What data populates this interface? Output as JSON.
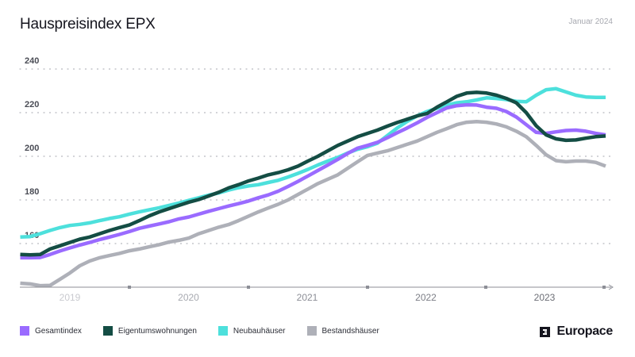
{
  "header": {
    "title": "Hauspreisindex EPX",
    "date": "Januar 2024"
  },
  "brand": {
    "name": "Europace",
    "icon": "europace-logo-icon"
  },
  "chart_data": {
    "type": "line",
    "title": "Hauspreisindex EPX",
    "subtitle": "Januar 2024",
    "xlabel": "",
    "ylabel": "",
    "ylim": [
      140,
      245
    ],
    "yticks": [
      160,
      180,
      200,
      220,
      240
    ],
    "ytick_labels": [
      "160",
      "180",
      "200",
      "220",
      "240"
    ],
    "xticks": [
      "2019",
      "2020",
      "2021",
      "2022",
      "2023"
    ],
    "x_range": [
      "2019-02",
      "2024-01"
    ],
    "grid": "horizontal dotted",
    "legend_position": "bottom-left",
    "x": [
      "2019-02",
      "2019-03",
      "2019-04",
      "2019-05",
      "2019-06",
      "2019-07",
      "2019-08",
      "2019-09",
      "2019-10",
      "2019-11",
      "2019-12",
      "2020-01",
      "2020-02",
      "2020-03",
      "2020-04",
      "2020-05",
      "2020-06",
      "2020-07",
      "2020-08",
      "2020-09",
      "2020-10",
      "2020-11",
      "2020-12",
      "2021-01",
      "2021-02",
      "2021-03",
      "2021-04",
      "2021-05",
      "2021-06",
      "2021-07",
      "2021-08",
      "2021-09",
      "2021-10",
      "2021-11",
      "2021-12",
      "2022-01",
      "2022-02",
      "2022-03",
      "2022-04",
      "2022-05",
      "2022-06",
      "2022-07",
      "2022-08",
      "2022-09",
      "2022-10",
      "2022-11",
      "2022-12",
      "2023-01",
      "2023-02",
      "2023-03",
      "2023-04",
      "2023-05",
      "2023-06",
      "2023-07",
      "2023-08",
      "2023-09",
      "2023-10",
      "2023-11",
      "2023-12",
      "2024-01"
    ],
    "series": [
      {
        "name": "Gesamtindex",
        "color": "#9a6bff",
        "values": [
          153.5,
          153.5,
          153.6,
          155.0,
          156.6,
          158.0,
          159.3,
          160.5,
          161.8,
          163.0,
          164.2,
          165.5,
          167.0,
          168.0,
          169.0,
          170.0,
          171.3,
          172.2,
          173.5,
          174.8,
          176.0,
          177.2,
          178.3,
          179.5,
          181.0,
          182.3,
          184.0,
          186.2,
          188.5,
          191.0,
          193.5,
          196.0,
          198.6,
          201.3,
          203.7,
          205.0,
          206.4,
          208.5,
          210.8,
          213.0,
          215.3,
          217.8,
          220.0,
          222.2,
          223.2,
          223.6,
          223.5,
          222.5,
          222.0,
          220.5,
          218.0,
          214.5,
          211.0,
          210.5,
          211.2,
          211.8,
          212.0,
          211.5,
          210.5,
          209.8
        ]
      },
      {
        "name": "Eigentumswohnungen",
        "color": "#144d44",
        "values": [
          155.0,
          154.8,
          155.0,
          157.5,
          159.0,
          160.5,
          162.0,
          163.0,
          164.5,
          166.0,
          167.3,
          168.5,
          170.5,
          172.7,
          174.5,
          176.0,
          177.5,
          179.0,
          180.2,
          181.8,
          183.5,
          185.5,
          187.0,
          188.7,
          190.0,
          191.5,
          192.5,
          193.8,
          195.5,
          197.8,
          200.0,
          202.5,
          205.0,
          207.0,
          209.0,
          210.5,
          212.0,
          213.8,
          215.5,
          217.0,
          218.5,
          219.6,
          222.5,
          225.0,
          227.5,
          229.0,
          229.3,
          229.0,
          228.0,
          226.5,
          224.5,
          220.0,
          214.0,
          209.8,
          208.0,
          207.3,
          207.5,
          208.3,
          209.0,
          209.3
        ]
      },
      {
        "name": "Neubauhäuser",
        "color": "#4de0dc",
        "values": [
          163.0,
          163.2,
          164.5,
          166.0,
          167.3,
          168.3,
          168.8,
          169.5,
          170.5,
          171.5,
          172.3,
          173.5,
          174.5,
          175.5,
          176.4,
          177.5,
          178.6,
          179.8,
          181.0,
          182.2,
          183.2,
          184.5,
          185.6,
          186.4,
          187.0,
          188.0,
          189.0,
          190.5,
          192.2,
          194.0,
          196.0,
          197.8,
          199.5,
          201.5,
          203.2,
          204.4,
          206.0,
          209.5,
          213.0,
          216.0,
          218.5,
          220.5,
          222.0,
          223.5,
          224.5,
          225.0,
          225.8,
          226.8,
          226.5,
          226.0,
          225.2,
          225.0,
          228.0,
          230.5,
          231.0,
          229.5,
          228.0,
          227.2,
          227.0,
          227.0
        ]
      },
      {
        "name": "Bestandshäuser",
        "color": "#aeb0b8",
        "values": [
          141.8,
          141.5,
          140.7,
          140.8,
          143.6,
          146.5,
          149.8,
          152.0,
          153.5,
          154.5,
          155.5,
          156.7,
          157.5,
          158.5,
          159.5,
          160.7,
          161.5,
          162.5,
          164.5,
          166.0,
          167.5,
          168.7,
          170.5,
          172.5,
          174.5,
          176.3,
          178.0,
          180.0,
          182.5,
          185.0,
          187.5,
          189.5,
          191.5,
          194.5,
          197.5,
          200.4,
          201.5,
          202.5,
          204.0,
          205.5,
          207.0,
          209.0,
          211.0,
          212.7,
          214.5,
          215.6,
          215.9,
          215.6,
          214.8,
          213.5,
          211.5,
          209.0,
          205.0,
          200.7,
          198.0,
          197.5,
          197.8,
          197.8,
          197.2,
          195.5
        ]
      }
    ]
  },
  "legend": [
    {
      "label": "Gesamtindex",
      "color": "#9a6bff"
    },
    {
      "label": "Eigentumswohnungen",
      "color": "#144d44"
    },
    {
      "label": "Neubauhäuser",
      "color": "#4de0dc"
    },
    {
      "label": "Bestandshäuser",
      "color": "#aeb0b8"
    }
  ]
}
